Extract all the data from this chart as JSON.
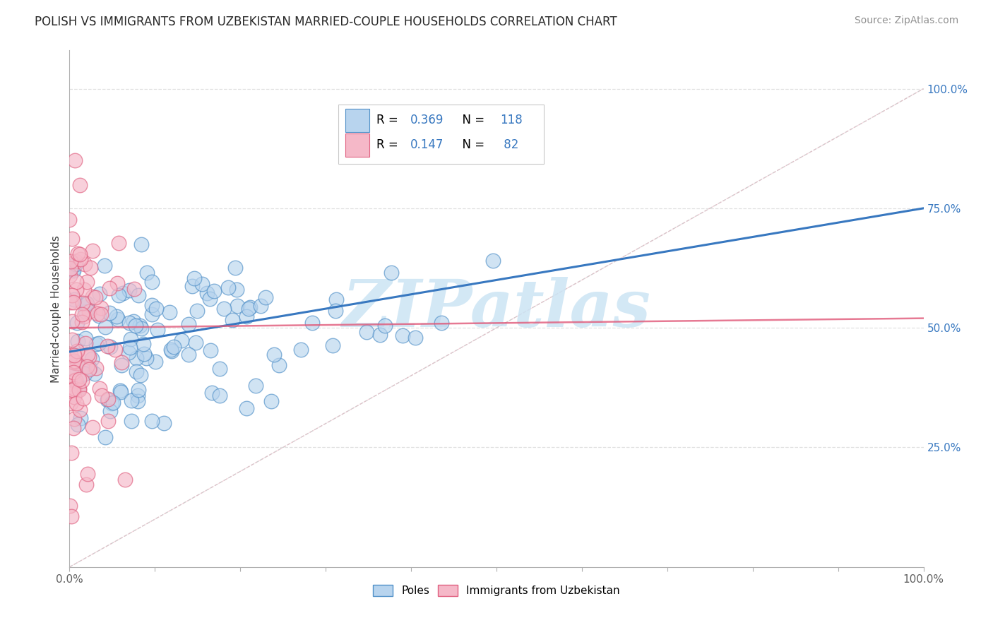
{
  "title": "POLISH VS IMMIGRANTS FROM UZBEKISTAN MARRIED-COUPLE HOUSEHOLDS CORRELATION CHART",
  "source": "Source: ZipAtlas.com",
  "ylabel": "Married-couple Households",
  "blue_R": 0.369,
  "blue_N": 118,
  "pink_R": 0.147,
  "pink_N": 82,
  "blue_color": "#b8d4ee",
  "pink_color": "#f5b8c8",
  "blue_edge_color": "#5090c8",
  "pink_edge_color": "#e06080",
  "blue_line_color": "#3878c0",
  "pink_line_color": "#e05878",
  "diag_color": "#d0d0d0",
  "grid_color": "#e0e0e0",
  "watermark": "ZIPatlas",
  "watermark_color": "#cce4f4",
  "title_fontsize": 12,
  "label_fontsize": 11,
  "tick_fontsize": 11,
  "source_fontsize": 10,
  "ytick_labels": [
    "25.0%",
    "50.0%",
    "75.0%",
    "100.0%"
  ],
  "ytick_positions": [
    0.25,
    0.5,
    0.75,
    1.0
  ],
  "xtick_labels": [
    "0.0%",
    "100.0%"
  ],
  "xtick_positions": [
    0.0,
    1.0
  ],
  "blue_line_x": [
    0.0,
    1.0
  ],
  "blue_line_y": [
    0.45,
    0.75
  ],
  "pink_line_x": [
    0.0,
    1.0
  ],
  "pink_line_y": [
    0.5,
    0.52
  ]
}
